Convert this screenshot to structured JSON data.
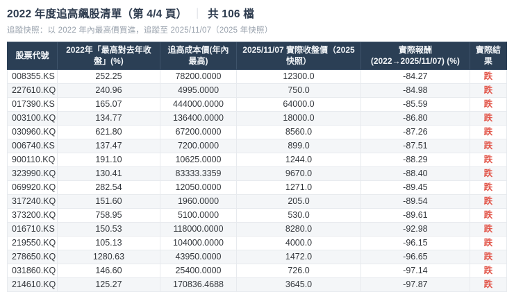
{
  "header": {
    "title_main": "2022 年度追高飆股清單（第 4/4 頁）",
    "title_separator": "｜",
    "title_count": "共 106 檔",
    "subtitle": "追蹤快照：以 2022 年內最高價買進，追蹤至 2025/11/07（2025 年快照）"
  },
  "colors": {
    "header_background": "#2b3f55",
    "header_text": "#f2f5f8",
    "result_down_red": "#e2574b",
    "row_stripe": "#f4f6f8",
    "title_text": "#2c3a4d",
    "subtitle_text": "#99a2ad"
  },
  "table": {
    "columns": [
      {
        "key": "code",
        "label": "股票代號"
      },
      {
        "key": "gain_pct",
        "label": "2022年「最高對去年收盤」(%)"
      },
      {
        "key": "cost_price",
        "label": "追高成本價(年內最高)"
      },
      {
        "key": "close_price",
        "label": "2025/11/07 實際收盤價（2025 快照）"
      },
      {
        "key": "return_pct",
        "label": "實際報酬 (2022→2025/11/07) (%)"
      },
      {
        "key": "result",
        "label": "實際結果"
      }
    ],
    "rows": [
      {
        "code": "008355.KS",
        "gain_pct": "252.25",
        "cost_price": "78200.0000",
        "close_price": "12300.0",
        "return_pct": "-84.27",
        "result": "跌"
      },
      {
        "code": "227610.KQ",
        "gain_pct": "240.96",
        "cost_price": "4995.0000",
        "close_price": "750.0",
        "return_pct": "-84.98",
        "result": "跌"
      },
      {
        "code": "017390.KS",
        "gain_pct": "165.07",
        "cost_price": "444000.0000",
        "close_price": "64000.0",
        "return_pct": "-85.59",
        "result": "跌"
      },
      {
        "code": "003100.KQ",
        "gain_pct": "134.77",
        "cost_price": "136400.0000",
        "close_price": "18000.0",
        "return_pct": "-86.80",
        "result": "跌"
      },
      {
        "code": "030960.KQ",
        "gain_pct": "621.80",
        "cost_price": "67200.0000",
        "close_price": "8560.0",
        "return_pct": "-87.26",
        "result": "跌"
      },
      {
        "code": "006740.KS",
        "gain_pct": "137.47",
        "cost_price": "7200.0000",
        "close_price": "899.0",
        "return_pct": "-87.51",
        "result": "跌"
      },
      {
        "code": "900110.KQ",
        "gain_pct": "191.10",
        "cost_price": "10625.0000",
        "close_price": "1244.0",
        "return_pct": "-88.29",
        "result": "跌"
      },
      {
        "code": "323990.KQ",
        "gain_pct": "130.41",
        "cost_price": "83333.3359",
        "close_price": "9670.0",
        "return_pct": "-88.40",
        "result": "跌"
      },
      {
        "code": "069920.KQ",
        "gain_pct": "282.54",
        "cost_price": "12050.0000",
        "close_price": "1271.0",
        "return_pct": "-89.45",
        "result": "跌"
      },
      {
        "code": "317240.KQ",
        "gain_pct": "151.60",
        "cost_price": "1960.0000",
        "close_price": "205.0",
        "return_pct": "-89.54",
        "result": "跌"
      },
      {
        "code": "373200.KQ",
        "gain_pct": "758.95",
        "cost_price": "5100.0000",
        "close_price": "530.0",
        "return_pct": "-89.61",
        "result": "跌"
      },
      {
        "code": "016710.KS",
        "gain_pct": "150.53",
        "cost_price": "118000.0000",
        "close_price": "8280.0",
        "return_pct": "-92.98",
        "result": "跌"
      },
      {
        "code": "219550.KQ",
        "gain_pct": "105.13",
        "cost_price": "104000.0000",
        "close_price": "4000.0",
        "return_pct": "-96.15",
        "result": "跌"
      },
      {
        "code": "278650.KQ",
        "gain_pct": "1280.63",
        "cost_price": "43950.0000",
        "close_price": "1472.0",
        "return_pct": "-96.65",
        "result": "跌"
      },
      {
        "code": "031860.KQ",
        "gain_pct": "146.60",
        "cost_price": "25400.0000",
        "close_price": "726.0",
        "return_pct": "-97.14",
        "result": "跌"
      },
      {
        "code": "214610.KQ",
        "gain_pct": "125.27",
        "cost_price": "170836.4688",
        "close_price": "3645.0",
        "return_pct": "-97.87",
        "result": "跌"
      }
    ]
  }
}
